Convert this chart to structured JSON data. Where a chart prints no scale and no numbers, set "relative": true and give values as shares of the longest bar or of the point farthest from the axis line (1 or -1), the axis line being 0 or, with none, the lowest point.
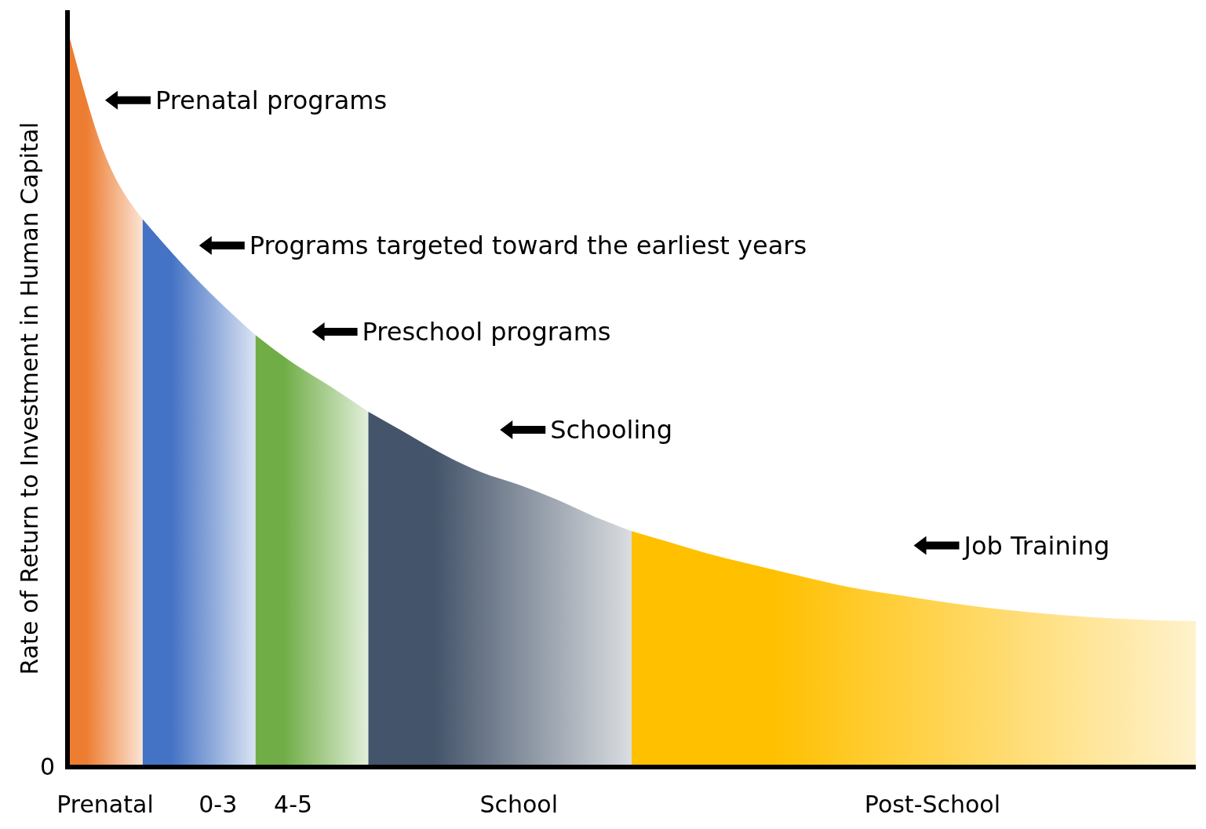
{
  "chart_data": {
    "type": "area",
    "relative": true,
    "ylabel": "Rate of Return to Investment in Human Capital",
    "categories": [
      null,
      "Prenatal",
      null,
      null,
      "0-3",
      null,
      "4-5",
      null,
      null,
      null,
      null,
      null,
      "School",
      null,
      null,
      null,
      null,
      null,
      null,
      null,
      null,
      null,
      null,
      "Post-School",
      null,
      null,
      null,
      null,
      null,
      null,
      null
    ],
    "series": [
      {
        "color": "#ed7d31",
        "values": [
          1.0,
          0.83,
          0.743,
          null,
          null,
          null,
          null,
          null,
          null,
          null,
          null,
          null,
          null,
          null,
          null,
          null,
          null,
          null,
          null,
          null,
          null,
          null,
          null,
          null,
          null,
          null,
          null,
          null,
          null,
          null,
          null
        ]
      },
      {
        "color": "#4472c4",
        "values": [
          null,
          null,
          0.743,
          0.685,
          0.633,
          0.586,
          null,
          null,
          null,
          null,
          null,
          null,
          null,
          null,
          null,
          null,
          null,
          null,
          null,
          null,
          null,
          null,
          null,
          null,
          null,
          null,
          null,
          null,
          null,
          null,
          null
        ]
      },
      {
        "color": "#70ad47",
        "values": [
          null,
          null,
          null,
          null,
          null,
          0.586,
          0.548,
          0.516,
          0.482,
          null,
          null,
          null,
          null,
          null,
          null,
          null,
          null,
          null,
          null,
          null,
          null,
          null,
          null,
          null,
          null,
          null,
          null,
          null,
          null,
          null,
          null
        ]
      },
      {
        "color": "#44546a",
        "values": [
          null,
          null,
          null,
          null,
          null,
          null,
          null,
          null,
          0.482,
          0.453,
          0.424,
          0.4,
          0.383,
          0.363,
          0.34,
          0.32,
          null,
          null,
          null,
          null,
          null,
          null,
          null,
          null,
          null,
          null,
          null,
          null,
          null,
          null,
          null
        ]
      },
      {
        "color": "#ffc000",
        "values": [
          null,
          null,
          null,
          null,
          null,
          null,
          null,
          null,
          null,
          null,
          null,
          null,
          null,
          null,
          null,
          0.32,
          0.305,
          0.29,
          0.277,
          0.265,
          0.253,
          0.242,
          0.234,
          0.226,
          0.219,
          0.213,
          0.208,
          0.204,
          0.201,
          0.199,
          0.198
        ]
      }
    ],
    "annotations": [
      "0",
      "Prenatal programs",
      "Programs targeted toward the earliest years",
      "Preschool programs",
      "Schooling",
      "Job Training"
    ]
  }
}
